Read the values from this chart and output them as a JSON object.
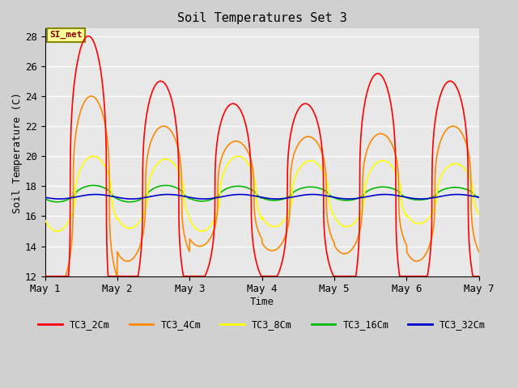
{
  "title": "Soil Temperatures Set 3",
  "xlabel": "Time",
  "ylabel": "Soil Temperature (C)",
  "ylim": [
    12,
    28.5
  ],
  "yticks": [
    12,
    14,
    16,
    18,
    20,
    22,
    24,
    26,
    28
  ],
  "fig_bg_color": "#d0d0d0",
  "plot_bg_color": "#e8e8e8",
  "legend_entries": [
    "TC3_2Cm",
    "TC3_4Cm",
    "TC3_8Cm",
    "TC3_16Cm",
    "TC3_32Cm"
  ],
  "line_colors": [
    "#ff0000",
    "#ff8800",
    "#ffff00",
    "#00bb00",
    "#0000cc"
  ],
  "annotation_text": "SI_met",
  "days": 6,
  "points_per_day": 288,
  "base_2cm": 17.5,
  "base_4cm": 17.5,
  "base_8cm": 17.5,
  "base_16cm": 17.5,
  "base_32cm": 17.3,
  "amps_2cm": [
    10.5,
    7.5,
    6.0,
    6.0,
    8.0,
    7.5
  ],
  "amps_4cm": [
    6.5,
    4.5,
    3.5,
    3.8,
    4.0,
    4.5
  ],
  "amps_8cm": [
    2.5,
    2.3,
    2.5,
    2.2,
    2.2,
    2.0
  ],
  "amps_16cm": [
    0.55,
    0.55,
    0.5,
    0.45,
    0.45,
    0.42
  ],
  "amps_32cm": [
    0.15,
    0.15,
    0.15,
    0.15,
    0.15,
    0.15
  ],
  "phase_2cm": 0.35,
  "phase_4cm": 0.39,
  "phase_8cm": 0.42,
  "phase_16cm": 0.42,
  "phase_32cm": 0.45,
  "skew": 3.0
}
